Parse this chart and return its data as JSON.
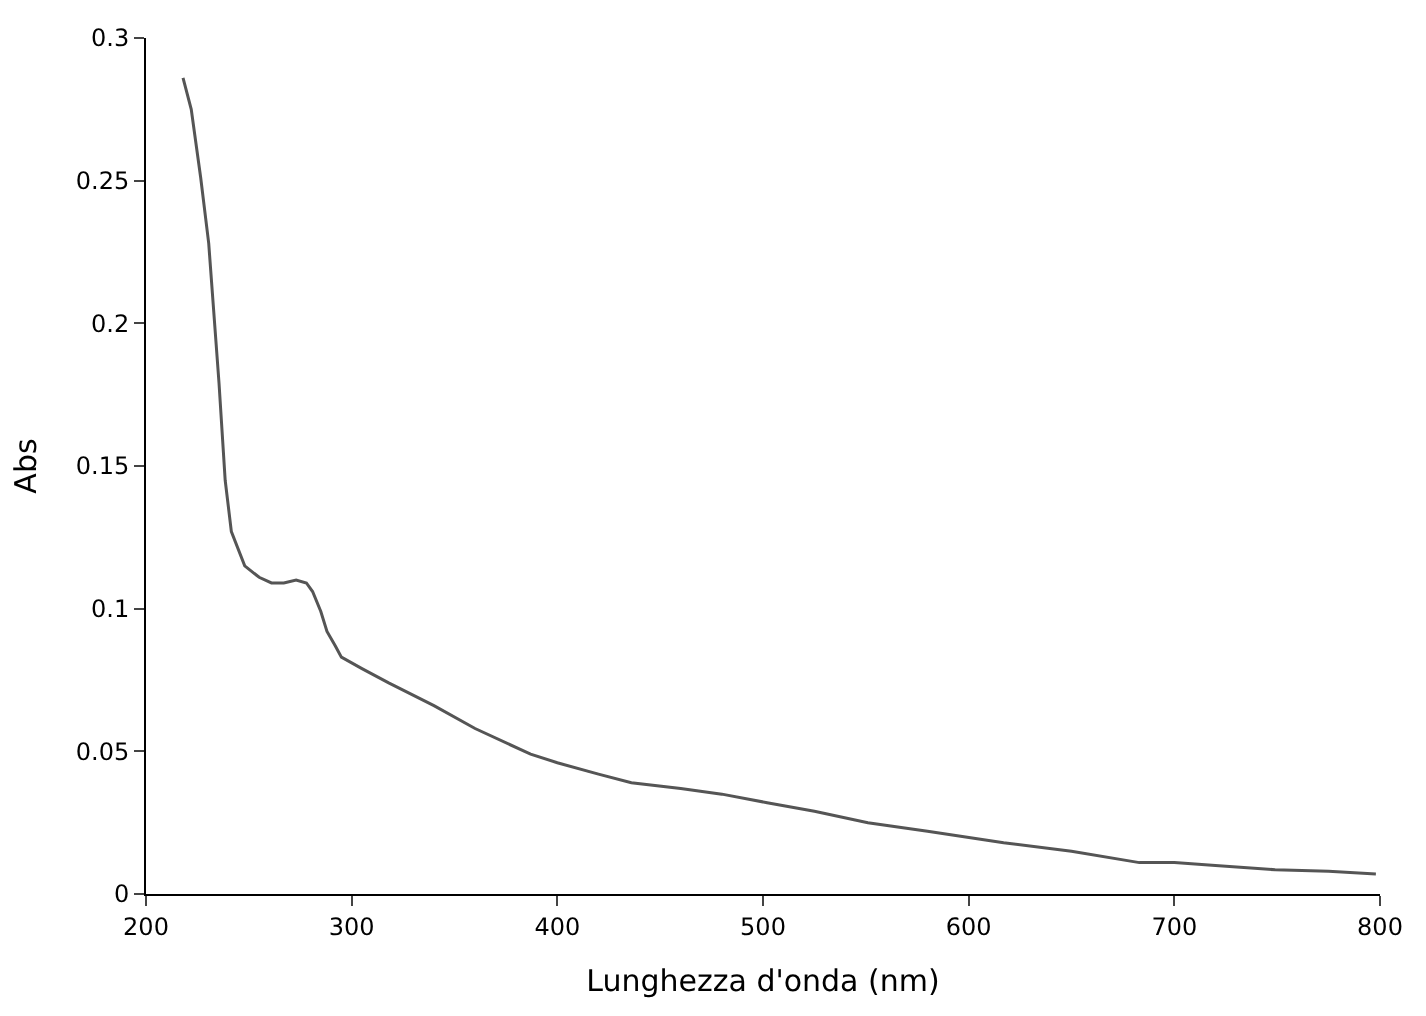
{
  "chart_data": {
    "type": "line",
    "xlabel": "Lunghezza d'onda (nm)",
    "ylabel": "Abs",
    "x": [
      218,
      222,
      226.6,
      230.5,
      235.5,
      238.5,
      241.5,
      248,
      255,
      261,
      267,
      273,
      278,
      281,
      285,
      288,
      292,
      295,
      305,
      318,
      340,
      360,
      387,
      400,
      420,
      436,
      460,
      480,
      502,
      525,
      551,
      580,
      617,
      650,
      683,
      700,
      720,
      749,
      775,
      798
    ],
    "series": [
      {
        "color": "#555555",
        "values": [
          0.286,
          0.275,
          0.251,
          0.228,
          0.179,
          0.145,
          0.127,
          0.115,
          0.111,
          0.109,
          0.109,
          0.11,
          0.109,
          0.106,
          0.099,
          0.092,
          0.087,
          0.083,
          0.079,
          0.074,
          0.066,
          0.058,
          0.049,
          0.046,
          0.042,
          0.039,
          0.037,
          0.035,
          0.032,
          0.029,
          0.025,
          0.022,
          0.018,
          0.015,
          0.011,
          0.011,
          0.01,
          0.0085,
          0.008,
          0.007
        ]
      }
    ],
    "xlim": [
      200,
      800
    ],
    "xticks": [
      200,
      300,
      400,
      500,
      600,
      700,
      800
    ],
    "ylim": [
      0,
      0.3
    ],
    "yticks": [
      0,
      0.05,
      0.1,
      0.15,
      0.2,
      0.25,
      0.3
    ],
    "marker": "none",
    "line_style": "solid"
  }
}
